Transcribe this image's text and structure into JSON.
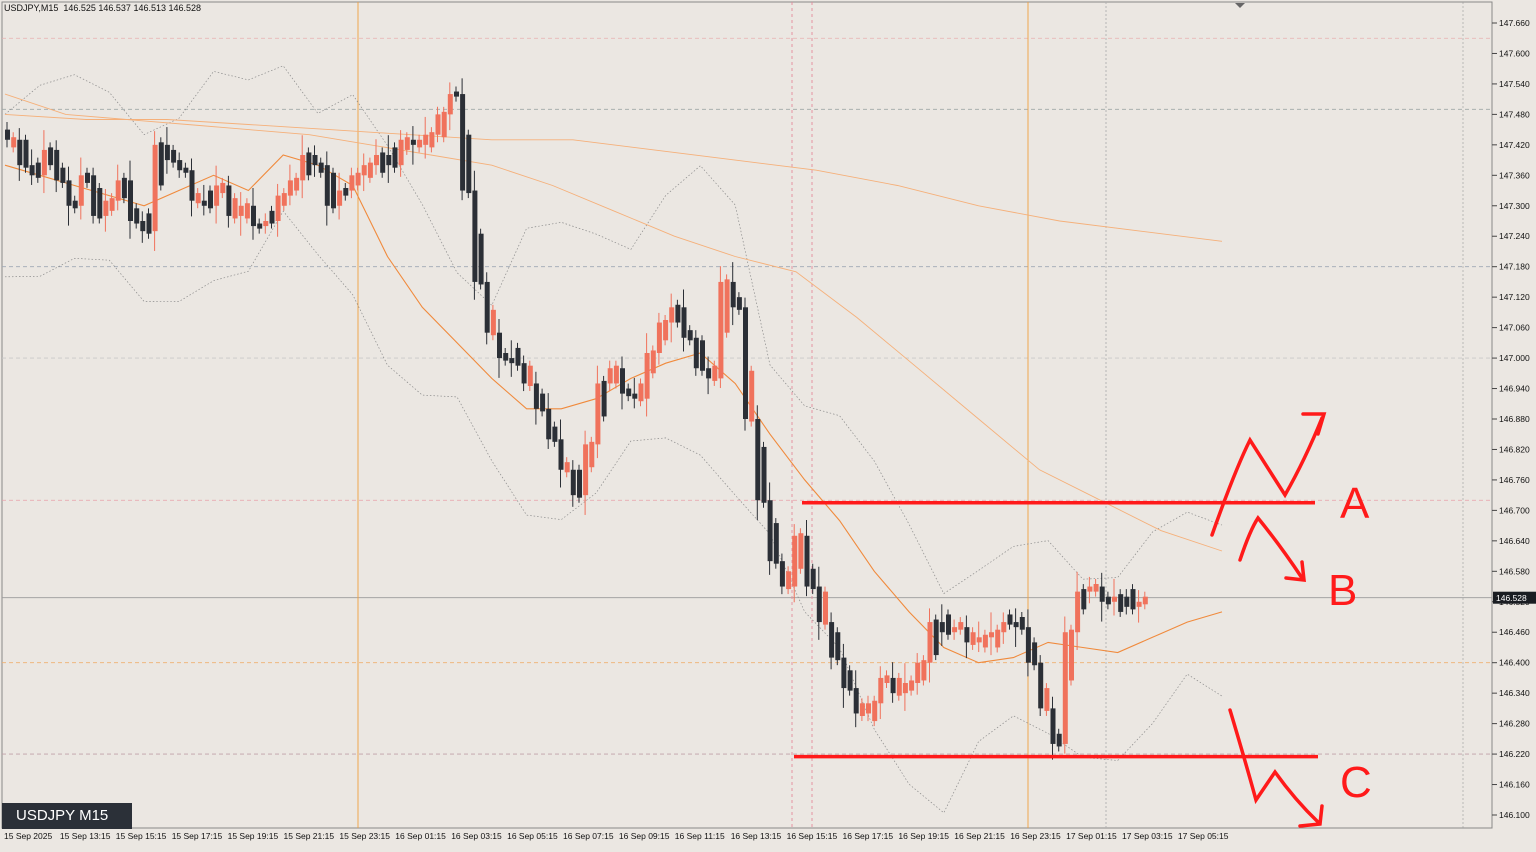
{
  "header": {
    "symbol_timeframe": "USDJPY,M15",
    "ohlc": "146.525 146.537 146.513 146.528"
  },
  "badge": "USDJPY M15",
  "colors": {
    "background": "#ebe7e2",
    "bull_candle": "#f0725c",
    "bear_candle": "#2b2f36",
    "ma_fast": "#f08a3c",
    "ma_slow": "#f5b07a",
    "bands": "#8a8a8a",
    "annotation": "#ff1a1a",
    "current_price_bg": "#1a1d22"
  },
  "chart_data": {
    "type": "candlestick",
    "ylim": [
      146.1,
      147.7
    ],
    "y_ticks": [
      "147.660",
      "147.600",
      "147.540",
      "147.480",
      "147.420",
      "147.360",
      "147.300",
      "147.240",
      "147.180",
      "147.120",
      "147.060",
      "147.000",
      "146.940",
      "146.880",
      "146.820",
      "146.760",
      "146.700",
      "146.640",
      "146.580",
      "146.520",
      "146.460",
      "146.400",
      "146.340",
      "146.280",
      "146.220",
      "146.160",
      "146.100"
    ],
    "x_labels": [
      "15 Sep 2025",
      "15 Sep 13:15",
      "15 Sep 15:15",
      "15 Sep 17:15",
      "15 Sep 19:15",
      "15 Sep 21:15",
      "15 Sep 23:15",
      "16 Sep 01:15",
      "16 Sep 03:15",
      "16 Sep 05:15",
      "16 Sep 07:15",
      "16 Sep 09:15",
      "16 Sep 11:15",
      "16 Sep 13:15",
      "16 Sep 15:15",
      "16 Sep 17:15",
      "16 Sep 19:15",
      "16 Sep 21:15",
      "16 Sep 23:15",
      "17 Sep 01:15",
      "17 Sep 03:15",
      "17 Sep 05:15"
    ],
    "current_price": "146.528",
    "candle_close_path": [
      147.43,
      147.38,
      147.36,
      147.41,
      147.35,
      147.3,
      147.36,
      147.28,
      147.31,
      147.35,
      147.27,
      147.25,
      147.42,
      147.39,
      147.37,
      147.31,
      147.3,
      147.34,
      147.28,
      147.3,
      147.26,
      147.27,
      147.32,
      147.35,
      147.4,
      147.38,
      147.3,
      147.33,
      147.36,
      147.38,
      147.4,
      147.38,
      147.43,
      147.42,
      147.44,
      147.48,
      147.52,
      147.33,
      147.15,
      147.05,
      147.0,
      146.99,
      146.95,
      146.9,
      146.84,
      146.78,
      146.73,
      146.83,
      146.95,
      146.98,
      146.93,
      146.92,
      147.01,
      147.07,
      147.1,
      147.04,
      146.98,
      146.96,
      147.15,
      147.1,
      146.88,
      146.72,
      146.6,
      146.55,
      146.65,
      146.55,
      146.48,
      146.41,
      146.35,
      146.3,
      146.32,
      146.37,
      146.34,
      146.36,
      146.4,
      146.48,
      146.46,
      146.47,
      146.44,
      146.45,
      146.46,
      146.48,
      146.47,
      146.4,
      146.31,
      146.24,
      146.46,
      146.54,
      146.55,
      146.52,
      146.53,
      146.51,
      146.52
    ],
    "ma_fast": [
      147.38,
      147.36,
      147.34,
      147.32,
      147.3,
      147.33,
      147.36,
      147.33,
      147.4,
      147.38,
      147.34,
      147.2,
      147.1,
      147.03,
      146.96,
      146.9,
      146.9,
      146.92,
      146.96,
      146.99,
      147.01,
      146.95,
      146.85,
      146.76,
      146.68,
      146.58,
      146.5,
      146.43,
      146.4,
      146.41,
      146.44,
      146.43,
      146.42,
      146.45,
      146.48,
      146.5
    ],
    "ma_slow": [
      147.52,
      147.48,
      147.47,
      147.46,
      147.45,
      147.44,
      147.42,
      147.4,
      147.38,
      147.34,
      147.29,
      147.24,
      147.2,
      147.17,
      147.08,
      146.98,
      146.88,
      146.78,
      146.72,
      146.66,
      146.62
    ],
    "ma_slowest": [
      147.48,
      147.47,
      147.47,
      147.46,
      147.45,
      147.44,
      147.43,
      147.43,
      147.41,
      147.39,
      147.37,
      147.34,
      147.3,
      147.27,
      147.25,
      147.23
    ],
    "levels": [
      146.715,
      146.215
    ]
  },
  "annotations": {
    "label_a": "A",
    "label_b": "B",
    "label_c": "C"
  }
}
